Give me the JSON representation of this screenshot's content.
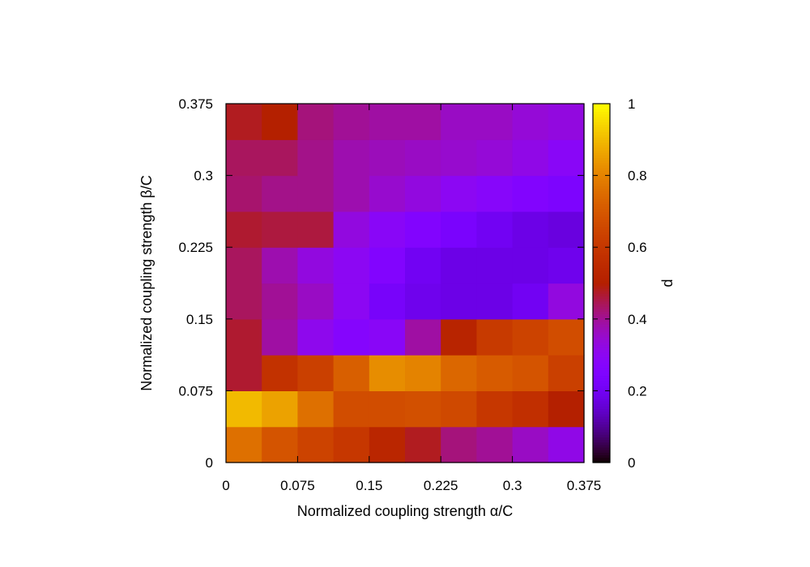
{
  "chart_data": {
    "type": "heatmap",
    "xlabel": "Normalized coupling strength α/C",
    "ylabel": "Normalized coupling strength β/C",
    "colorbar_label": "d",
    "x_ticks": [
      "0",
      "0.075",
      "0.15",
      "0.225",
      "0.3",
      "0.375"
    ],
    "y_ticks": [
      "0",
      "0.075",
      "0.15",
      "0.225",
      "0.3",
      "0.375"
    ],
    "colorbar_ticks": [
      "0",
      "0.2",
      "0.4",
      "0.6",
      "0.8",
      "1"
    ],
    "xlim": [
      0,
      0.375
    ],
    "ylim": [
      0,
      0.375
    ],
    "zlim": [
      0,
      1
    ],
    "x_centers": [
      0.01875,
      0.05625,
      0.09375,
      0.13125,
      0.16875,
      0.20625,
      0.24375,
      0.28125,
      0.31875,
      0.35625
    ],
    "y_centers": [
      0.01875,
      0.05625,
      0.09375,
      0.13125,
      0.16875,
      0.20625,
      0.24375,
      0.28125,
      0.31875,
      0.35625
    ],
    "values": [
      [
        0.76,
        0.69,
        0.64,
        0.6,
        0.53,
        0.48,
        0.42,
        0.4,
        0.36,
        0.32
      ],
      [
        0.9,
        0.86,
        0.76,
        0.67,
        0.67,
        0.68,
        0.66,
        0.6,
        0.57,
        0.5
      ],
      [
        0.47,
        0.58,
        0.63,
        0.72,
        0.82,
        0.8,
        0.74,
        0.71,
        0.69,
        0.63
      ],
      [
        0.47,
        0.39,
        0.31,
        0.27,
        0.29,
        0.39,
        0.52,
        0.61,
        0.64,
        0.67
      ],
      [
        0.44,
        0.4,
        0.36,
        0.3,
        0.22,
        0.19,
        0.18,
        0.18,
        0.2,
        0.33
      ],
      [
        0.44,
        0.38,
        0.33,
        0.3,
        0.26,
        0.2,
        0.18,
        0.18,
        0.18,
        0.19
      ],
      [
        0.47,
        0.46,
        0.46,
        0.33,
        0.29,
        0.26,
        0.23,
        0.2,
        0.18,
        0.17
      ],
      [
        0.43,
        0.41,
        0.41,
        0.38,
        0.35,
        0.33,
        0.3,
        0.28,
        0.26,
        0.24
      ],
      [
        0.44,
        0.44,
        0.41,
        0.38,
        0.37,
        0.36,
        0.35,
        0.34,
        0.32,
        0.29
      ],
      [
        0.48,
        0.5,
        0.42,
        0.4,
        0.39,
        0.39,
        0.36,
        0.36,
        0.34,
        0.33
      ]
    ],
    "colormap": "gnuplot-pm3d"
  }
}
